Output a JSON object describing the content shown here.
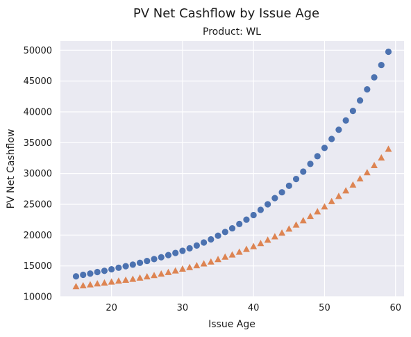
{
  "chart_data": {
    "type": "scatter",
    "title": "PV Net Cashflow by Issue Age",
    "subtitle": "Product: WL",
    "xlabel": "Issue Age",
    "ylabel": "PV Net Cashflow",
    "xlim": [
      12.8,
      61.2
    ],
    "ylim": [
      10000,
      51500
    ],
    "x_ticks": [
      20,
      30,
      40,
      50,
      60
    ],
    "y_ticks": [
      10000,
      15000,
      20000,
      25000,
      30000,
      35000,
      40000,
      45000,
      50000
    ],
    "grid": true,
    "x": [
      15,
      16,
      17,
      18,
      19,
      20,
      21,
      22,
      23,
      24,
      25,
      26,
      27,
      28,
      29,
      30,
      31,
      32,
      33,
      34,
      35,
      36,
      37,
      38,
      39,
      40,
      41,
      42,
      43,
      44,
      45,
      46,
      47,
      48,
      49,
      50,
      51,
      52,
      53,
      54,
      55,
      56,
      57,
      58,
      59
    ],
    "series": [
      {
        "marker": "circle",
        "color": "#4c72b0",
        "values": [
          13300,
          13550,
          13750,
          14000,
          14200,
          14450,
          14700,
          14950,
          15200,
          15500,
          15800,
          16100,
          16400,
          16750,
          17100,
          17450,
          17850,
          18300,
          18800,
          19300,
          19900,
          20500,
          21100,
          21800,
          22500,
          23250,
          24100,
          25000,
          26000,
          26950,
          28000,
          29100,
          30300,
          31550,
          32800,
          34150,
          35600,
          37100,
          38600,
          40150,
          41850,
          43650,
          45600,
          47600,
          49750
        ]
      },
      {
        "marker": "triangle",
        "color": "#dd8452",
        "values": [
          11650,
          11800,
          11950,
          12100,
          12250,
          12400,
          12550,
          12700,
          12850,
          13050,
          13250,
          13450,
          13700,
          13950,
          14200,
          14500,
          14750,
          15050,
          15350,
          15650,
          16050,
          16450,
          16800,
          17250,
          17700,
          18150,
          18650,
          19200,
          19750,
          20350,
          21000,
          21650,
          22350,
          23050,
          23800,
          24600,
          25450,
          26300,
          27200,
          28150,
          29150,
          30150,
          31300,
          32550,
          33950
        ]
      }
    ]
  }
}
